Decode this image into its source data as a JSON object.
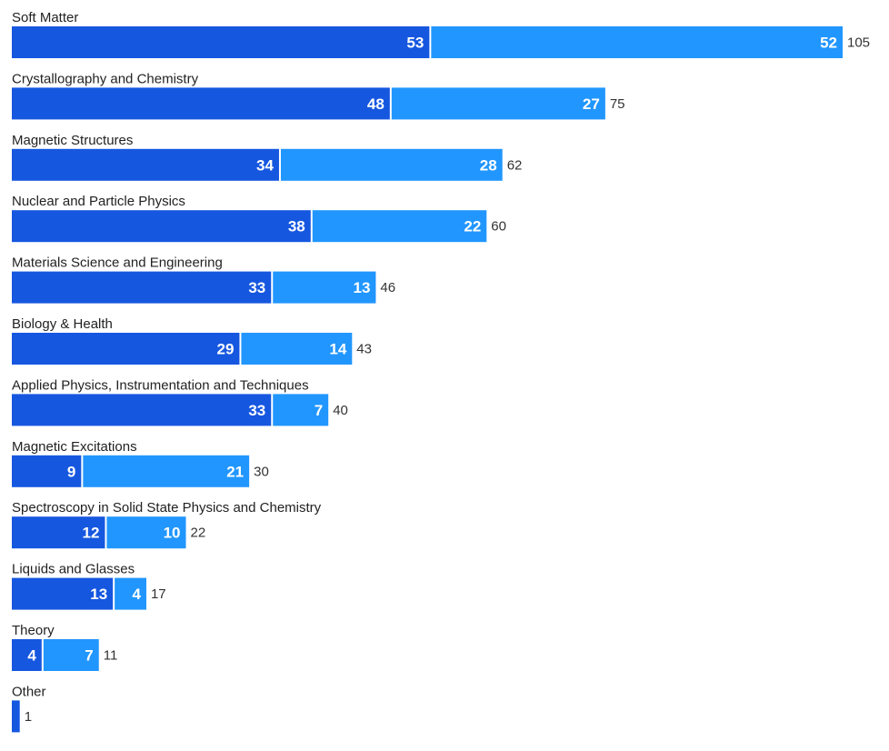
{
  "chart_data": {
    "type": "bar",
    "orientation": "horizontal",
    "stacked": true,
    "title": "",
    "xlabel": "",
    "ylabel": "",
    "grid": false,
    "legend": "none",
    "xlim": [
      0,
      105
    ],
    "categories": [
      "Soft Matter",
      "Crystallography and Chemistry",
      "Magnetic Structures",
      "Nuclear and Particle Physics",
      "Materials Science and Engineering",
      "Biology & Health",
      "Applied Physics, Instrumentation and Techniques",
      "Magnetic Excitations",
      "Spectroscopy in Solid State Physics and Chemistry",
      "Liquids and Glasses",
      "Theory",
      "Other"
    ],
    "series": [
      {
        "color": "#1657e0",
        "values": [
          53,
          48,
          34,
          38,
          33,
          29,
          33,
          9,
          12,
          13,
          4,
          1
        ]
      },
      {
        "color": "#2196fe",
        "values": [
          52,
          27,
          28,
          22,
          13,
          14,
          7,
          21,
          10,
          4,
          7,
          0
        ]
      }
    ],
    "totals": [
      105,
      75,
      62,
      60,
      46,
      43,
      40,
      30,
      22,
      17,
      11,
      1
    ],
    "segment_labels_visible": [
      [
        true,
        true,
        true,
        true,
        true,
        true,
        true,
        true,
        true,
        true,
        true,
        false
      ],
      [
        true,
        true,
        true,
        true,
        true,
        true,
        true,
        true,
        true,
        true,
        true,
        false
      ]
    ]
  }
}
